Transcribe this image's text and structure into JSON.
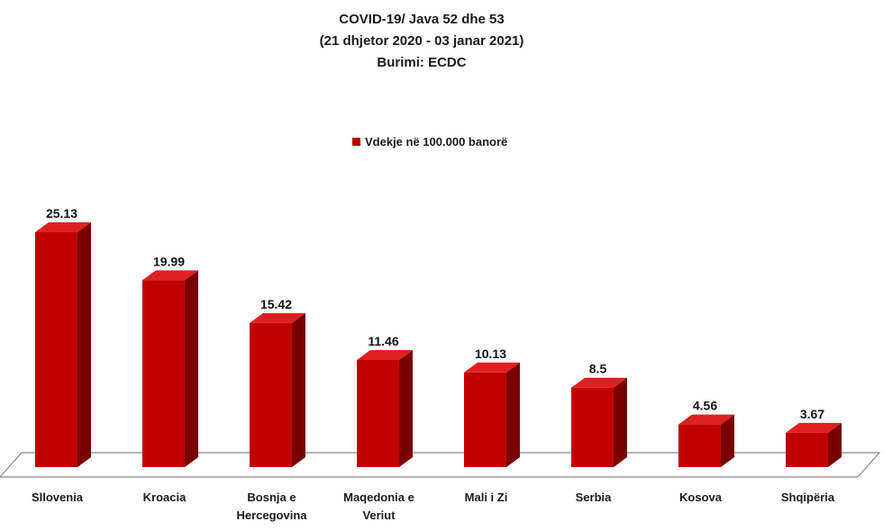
{
  "chart_data": {
    "type": "bar",
    "style": "3d-column",
    "title": [
      "COVID-19/ Java 52 dhe 53",
      "(21 dhjetor 2020 - 03 janar 2021)",
      "Burimi: ECDC"
    ],
    "legend": {
      "position": "top",
      "entries": [
        "Vdekje në 100.000 banorë"
      ]
    },
    "categories": [
      [
        "Sllovenia"
      ],
      [
        "Kroacia"
      ],
      [
        "Bosnja e",
        "Hercegovina"
      ],
      [
        "Maqedonia e",
        "Veriut"
      ],
      [
        "Mali i Zi"
      ],
      [
        "Serbia"
      ],
      [
        "Kosova"
      ],
      [
        "Shqipëria"
      ]
    ],
    "series": [
      {
        "name": "Vdekje në 100.000 banorë",
        "values": [
          25.13,
          19.99,
          15.42,
          11.46,
          10.13,
          8.5,
          4.56,
          3.67
        ],
        "labels": [
          "25.13",
          "19.99",
          "15.42",
          "11.46",
          "10.13",
          "8.5",
          "4.56",
          "3.67"
        ],
        "color": "#c00000"
      }
    ],
    "ylim": [
      0,
      25.13
    ],
    "grid": false,
    "xlabel": "",
    "ylabel": ""
  },
  "colors": {
    "bar_front": "#c00000",
    "bar_top": "#e02020",
    "bar_side": "#7a0000",
    "floor_stroke": "#888888"
  }
}
